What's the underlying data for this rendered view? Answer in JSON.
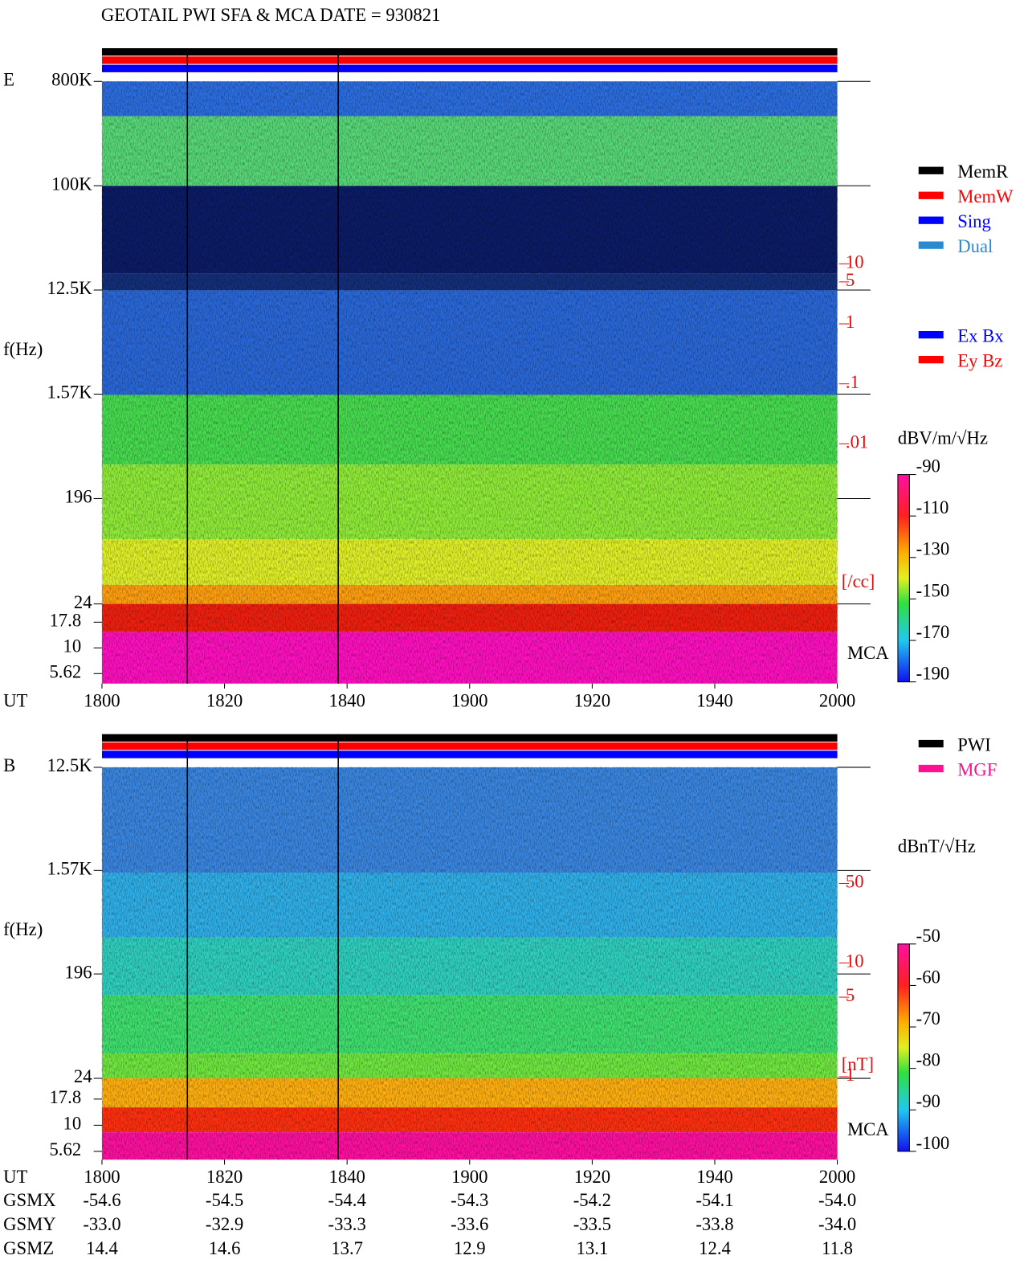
{
  "title": "GEOTAIL  PWI SFA & MCA   DATE = 930821",
  "chart_data": [
    {
      "type": "spectrogram",
      "panel_label": "E",
      "ylabel": "f(Hz)",
      "xlabel": "UT",
      "ylog": true,
      "ylim": [
        24,
        800000
      ],
      "yticks": [
        {
          "value": 800000,
          "label": "800K"
        },
        {
          "value": 100000,
          "label": "100K"
        },
        {
          "value": 12500,
          "label": "12.5K"
        },
        {
          "value": 1570,
          "label": "1.57K"
        },
        196,
        24
      ],
      "mca_label": "MCA",
      "mca_yticks": [
        17.8,
        10,
        5.62
      ],
      "categories": [
        "1800",
        "1820",
        "1840",
        "1900",
        "1920",
        "1940",
        "2000"
      ],
      "density_lim": [
        0.01,
        10
      ],
      "density_ticks": [
        10,
        5,
        1,
        {
          "value": 0.1,
          "label": ".1"
        },
        {
          "value": 0.01,
          "label": ".01"
        }
      ],
      "density_unit": "[/cc]",
      "colorbar": {
        "label": "dBV/m/√Hz",
        "lim": [
          -190,
          -90
        ],
        "ticks": [
          -90,
          -110,
          -130,
          -150,
          -170,
          -190
        ]
      },
      "legends": [
        [
          {
            "name": "MemR",
            "color": "#000000"
          },
          {
            "name": "MemW",
            "color": "#ff0000"
          },
          {
            "name": "Sing",
            "color": "#0000ff"
          },
          {
            "name": "Dual",
            "color": "#2a8ad0"
          }
        ],
        [
          {
            "name": "Ex Bx",
            "color": "#0000ff"
          },
          {
            "name": "Ey Bz",
            "color": "#ff0000"
          }
        ]
      ]
    },
    {
      "type": "spectrogram",
      "panel_label": "B",
      "ylabel": "f(Hz)",
      "xlabel": "UT",
      "ylog": true,
      "ylim": [
        24,
        12500
      ],
      "yticks": [
        {
          "value": 12500,
          "label": "12.5K"
        },
        {
          "value": 1570,
          "label": "1.57K"
        },
        196,
        24
      ],
      "mca_label": "MCA",
      "mca_yticks": [
        17.8,
        10,
        5.62
      ],
      "categories": [
        "1800",
        "1820",
        "1840",
        "1900",
        "1920",
        "1940",
        "2000"
      ],
      "density_lim": [
        1,
        50
      ],
      "density_ticks": [
        50,
        10,
        5,
        1
      ],
      "density_unit": "[nT]",
      "colorbar": {
        "label": "dBnT/√Hz",
        "lim": [
          -100,
          -50
        ],
        "ticks": [
          -50,
          -60,
          -70,
          -80,
          -90,
          -100
        ]
      },
      "legends": [
        [
          {
            "name": "PWI",
            "color": "#000000"
          },
          {
            "name": "MGF",
            "color": "#ff1090"
          }
        ]
      ]
    }
  ],
  "orbit": {
    "rows": [
      {
        "name": "GSMX",
        "values": [
          "-54.6",
          "-54.5",
          "-54.4",
          "-54.3",
          "-54.2",
          "-54.1",
          "-54.0"
        ]
      },
      {
        "name": "GSMY",
        "values": [
          "-33.0",
          "-32.9",
          "-33.3",
          "-33.6",
          "-33.5",
          "-33.8",
          "-34.0"
        ]
      },
      {
        "name": "GSMZ",
        "values": [
          "14.4",
          "14.6",
          "13.7",
          "12.9",
          "13.1",
          "12.4",
          "11.8"
        ]
      }
    ]
  }
}
